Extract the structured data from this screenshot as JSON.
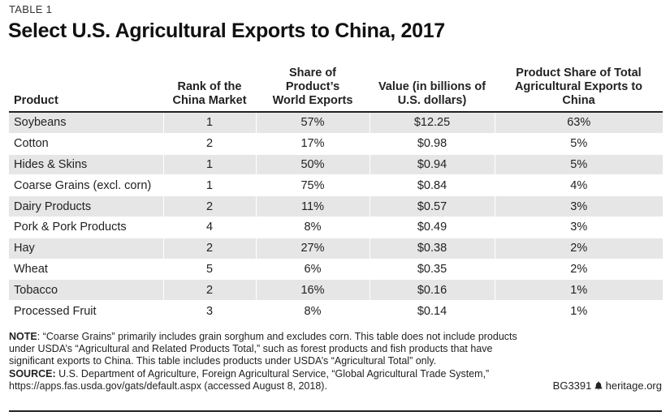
{
  "table_label": "TABLE 1",
  "title": "Select U.S. Agricultural Exports to China, 2017",
  "chart_data": {
    "type": "table",
    "title": "Select U.S. Agricultural Exports to China, 2017",
    "columns": [
      "Product",
      "Rank of the China Market",
      "Share of Product’s World Exports",
      "Value (in billions of U.S. dollars)",
      "Product Share of Total Agricultural Exports to China"
    ],
    "header_lines": [
      [
        "Product"
      ],
      [
        "Rank of the",
        "China Market"
      ],
      [
        "Share of Product’s",
        "World Exports"
      ],
      [
        "Value (in billions of",
        "U.S. dollars)"
      ],
      [
        "Product Share of Total",
        "Agricultural Exports to China"
      ]
    ],
    "rows": [
      [
        "Soybeans",
        "1",
        "57%",
        "$12.25",
        "63%"
      ],
      [
        "Cotton",
        "2",
        "17%",
        "$0.98",
        "5%"
      ],
      [
        "Hides & Skins",
        "1",
        "50%",
        "$0.94",
        "5%"
      ],
      [
        "Coarse Grains (excl. corn)",
        "1",
        "75%",
        "$0.84",
        "4%"
      ],
      [
        "Dairy Products",
        "2",
        "11%",
        "$0.57",
        "3%"
      ],
      [
        "Pork & Pork Products",
        "4",
        "8%",
        "$0.49",
        "3%"
      ],
      [
        "Hay",
        "2",
        "27%",
        "$0.38",
        "2%"
      ],
      [
        "Wheat",
        "5",
        "6%",
        "$0.35",
        "2%"
      ],
      [
        "Tobacco",
        "2",
        "16%",
        "$0.16",
        "1%"
      ],
      [
        "Processed Fruit",
        "3",
        "8%",
        "$0.14",
        "1%"
      ]
    ]
  },
  "note": {
    "label": "NOTE",
    "text": ": “Coarse Grains” primarily includes grain sorghum and excludes corn. This table does not include products under USDA’s “Agricultural and Related Products Total,” such as forest products and fish products that have significant exports to China. This table includes products under USDA’s “Agricultural Total” only."
  },
  "source": {
    "label": "SOURCE:",
    "text": " U.S. Department of Agriculture, Foreign Agricultural Service, “Global Agricultural Trade System,” https://apps.fas.usda.gov/gats/default.aspx (accessed August 8, 2018)."
  },
  "footer": {
    "report_id": "BG3391",
    "site": "heritage.org",
    "bell_icon": "liberty-bell-icon"
  }
}
